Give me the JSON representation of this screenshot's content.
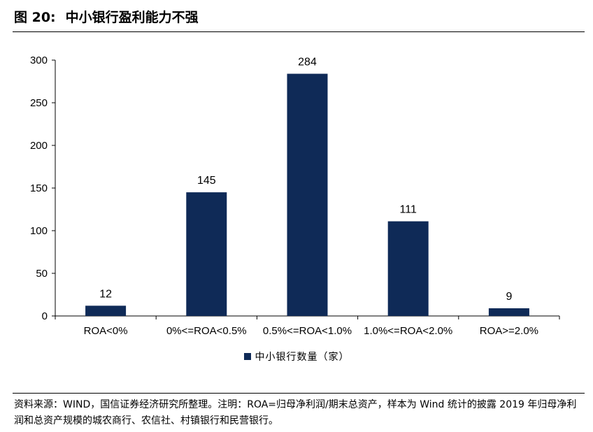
{
  "figure": {
    "label": "图 20:",
    "title": "中小银行盈利能力不强"
  },
  "chart_data": {
    "type": "bar",
    "categories": [
      "ROA<0%",
      "0%<=ROA<0.5%",
      "0.5%<=ROA<1.0%",
      "1.0%<=ROA<2.0%",
      "ROA>=2.0%"
    ],
    "series": [
      {
        "name": "中小银行数量（家）",
        "values": [
          12,
          145,
          284,
          111,
          9
        ],
        "color": "#0f2a57"
      }
    ],
    "ylim": [
      0,
      300
    ],
    "yticks": [
      0,
      50,
      100,
      150,
      200,
      250,
      300
    ],
    "grid": false,
    "legend": "bottom-center",
    "data_labels": true
  },
  "source_note": "资料来源：WIND，国信证券经济研究所整理。注明：ROA=归母净利润/期末总资产，样本为 Wind 统计的披露 2019 年归母净利润和总资产规模的城农商行、农信社、村镇银行和民营银行。"
}
